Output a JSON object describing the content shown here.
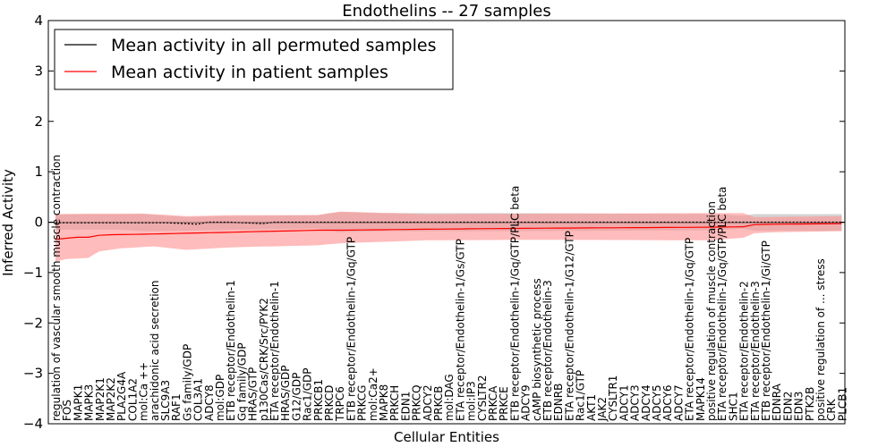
{
  "chart_data": {
    "type": "line",
    "title": "Endothelins -- 27 samples",
    "xlabel": "Cellular Entities",
    "ylabel": "Inferred Activity",
    "ylim": [
      -4,
      4
    ],
    "yticks": [
      -4,
      -3,
      -2,
      -1,
      0,
      1,
      2,
      3,
      4
    ],
    "legend_location": "top-left",
    "legend": [
      {
        "label": "Mean activity in all permuted samples",
        "color": "#000000"
      },
      {
        "label": "Mean activity in patient samples",
        "color": "#ff0000"
      }
    ],
    "categories": [
      "regulation of vascular smooth muscle contraction",
      "FOS",
      "MAPK1",
      "MAPK3",
      "MAP2K1",
      "MAP2K2",
      "PLA2G4A",
      "COL1A2",
      "mol:Ca ++",
      "arachidonic acid secretion",
      "SLC9A3",
      "RAF1",
      "Gs family/GDP",
      "COL3A1",
      "ADCY8",
      "mol:GDP",
      "ETB receptor/Endothelin-1",
      "Gq family/GDP",
      "HRAS/GTP",
      "p130Cas/CRK/Src/PYK2",
      "ETA receptor/Endothelin-1",
      "HRAS/GDP",
      "G12/GDP",
      "Rac1/GDP",
      "PRKCB1",
      "PRKCD",
      "TRPC6",
      "ETB receptor/Endothelin-1/Gq/GTP",
      "PRKCG",
      "mol:Ca2+",
      "MAPK8",
      "PRKCH",
      "EDN1",
      "PRKCQ",
      "ADCY2",
      "PRKCB",
      "mol:DAG",
      "ETA receptor/Endothelin-1/Gs/GTP",
      "mol:IP3",
      "CYSLTR2",
      "PRKCA",
      "PRKCE",
      "ETB receptor/Endothelin-1/Gq/GTP/PLC beta",
      "ADCY9",
      "cAMP biosynthetic process",
      "ETB receptor/Endothelin-3",
      "EDNRB",
      "ETA receptor/Endothelin-1/G12/GTP",
      "Rac1/GTP",
      "AKT1",
      "JAK2",
      "CYSLTR1",
      "ADCY1",
      "ADCY3",
      "ADCY4",
      "ADCY5",
      "ADCY6",
      "ADCY7",
      "ETA receptor/Endothelin-1/Gq/GTP",
      "MAPK14",
      "positive regulation of muscle contraction",
      "ETA receptor/Endothelin-1/Gq/GTP/PLC beta",
      "SHC1",
      "ETA receptor/Endothelin-2",
      "ETA receptor/Endothelin-3",
      "ETB receptor/Endothelin-1/Gi/GTP",
      "EDNRA",
      "EDN2",
      "EDN3",
      "PTK2B",
      "positive regulation of ... stress",
      "CRK",
      "PLCB1"
    ],
    "series": [
      {
        "name": "Mean activity in all permuted samples",
        "color": "#000000",
        "style": "dashed",
        "points": [
          [
            0,
            -0.01
          ],
          [
            5,
            -0.01
          ],
          [
            10,
            -0.01
          ],
          [
            13,
            -0.04
          ],
          [
            14,
            0.0
          ],
          [
            16,
            0.0
          ],
          [
            19,
            -0.03
          ],
          [
            20,
            0.0
          ],
          [
            24,
            0.0
          ],
          [
            30,
            0.0
          ],
          [
            50,
            0.0
          ],
          [
            72,
            0.0
          ]
        ]
      },
      {
        "name": "Mean activity in patient samples",
        "color": "#ff0000",
        "style": "solid",
        "points": [
          [
            0,
            -0.34
          ],
          [
            1,
            -0.32
          ],
          [
            2,
            -0.3
          ],
          [
            3,
            -0.3
          ],
          [
            4,
            -0.26
          ],
          [
            5,
            -0.25
          ],
          [
            8,
            -0.24
          ],
          [
            12,
            -0.22
          ],
          [
            16,
            -0.2
          ],
          [
            20,
            -0.18
          ],
          [
            24,
            -0.16
          ],
          [
            26,
            -0.16
          ],
          [
            34,
            -0.14
          ],
          [
            44,
            -0.12
          ],
          [
            60,
            -0.1
          ],
          [
            63,
            -0.09
          ],
          [
            64,
            -0.05
          ],
          [
            66,
            -0.04
          ],
          [
            72,
            -0.03
          ]
        ]
      }
    ],
    "bands": [
      {
        "name": "permuted range",
        "color": "#b0b0b0",
        "upper": [
          [
            0,
            0.15
          ],
          [
            6,
            0.15
          ],
          [
            8,
            0.16
          ],
          [
            12,
            0.1
          ],
          [
            16,
            0.12
          ],
          [
            24,
            0.14
          ],
          [
            26,
            0.2
          ],
          [
            30,
            0.18
          ],
          [
            40,
            0.18
          ],
          [
            50,
            0.17
          ],
          [
            60,
            0.16
          ],
          [
            63,
            0.13
          ],
          [
            64,
            0.16
          ],
          [
            72,
            0.16
          ]
        ],
        "lower": [
          [
            0,
            -0.15
          ],
          [
            6,
            -0.15
          ],
          [
            8,
            -0.18
          ],
          [
            12,
            -0.17
          ],
          [
            16,
            -0.15
          ],
          [
            24,
            -0.13
          ],
          [
            26,
            -0.2
          ],
          [
            30,
            -0.18
          ],
          [
            40,
            -0.18
          ],
          [
            50,
            -0.17
          ],
          [
            60,
            -0.16
          ],
          [
            63,
            -0.13
          ],
          [
            64,
            -0.17
          ],
          [
            72,
            -0.17
          ]
        ]
      },
      {
        "name": "patient range",
        "color": "#ff9090",
        "upper": [
          [
            0,
            0.16
          ],
          [
            3,
            0.17
          ],
          [
            8,
            0.17
          ],
          [
            12,
            0.12
          ],
          [
            16,
            0.14
          ],
          [
            24,
            0.14
          ],
          [
            26,
            0.21
          ],
          [
            34,
            0.16
          ],
          [
            44,
            0.17
          ],
          [
            60,
            0.18
          ],
          [
            63,
            0.18
          ],
          [
            64,
            0.1
          ],
          [
            72,
            0.12
          ]
        ],
        "lower": [
          [
            0,
            -0.78
          ],
          [
            1,
            -0.73
          ],
          [
            2,
            -0.72
          ],
          [
            3,
            -0.71
          ],
          [
            4,
            -0.58
          ],
          [
            6,
            -0.52
          ],
          [
            9,
            -0.48
          ],
          [
            12,
            -0.55
          ],
          [
            16,
            -0.5
          ],
          [
            20,
            -0.48
          ],
          [
            24,
            -0.46
          ],
          [
            26,
            -0.42
          ],
          [
            34,
            -0.36
          ],
          [
            44,
            -0.35
          ],
          [
            60,
            -0.36
          ],
          [
            63,
            -0.31
          ],
          [
            64,
            -0.22
          ],
          [
            66,
            -0.2
          ],
          [
            72,
            -0.18
          ]
        ]
      }
    ]
  }
}
